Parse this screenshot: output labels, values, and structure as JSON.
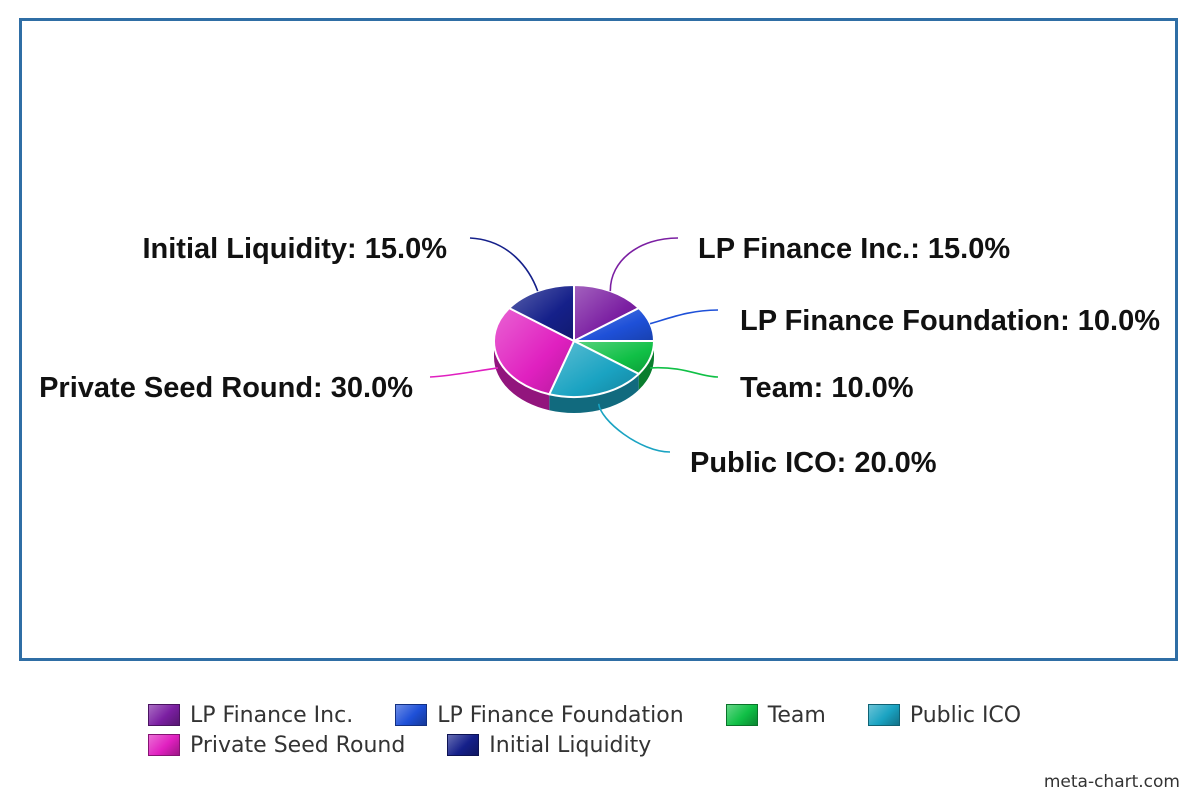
{
  "chart_data": {
    "type": "pie",
    "title": "",
    "style": "3d",
    "slices": [
      {
        "name": "LP Finance Inc.",
        "value": 15.0,
        "label": "LP Finance Inc.: 15.0%",
        "color": "#7b1fa2"
      },
      {
        "name": "LP Finance Foundation",
        "value": 10.0,
        "label": "LP Finance Foundation: 10.0%",
        "color": "#1e50d8"
      },
      {
        "name": "Team",
        "value": 10.0,
        "label": "Team: 10.0%",
        "color": "#10c046"
      },
      {
        "name": "Public ICO",
        "value": 20.0,
        "label": "Public ICO: 20.0%",
        "color": "#1aa3c2"
      },
      {
        "name": "Private Seed Round",
        "value": 30.0,
        "label": "Private Seed Round: 30.0%",
        "color": "#e020c0"
      },
      {
        "name": "Initial Liquidity",
        "value": 15.0,
        "label": "Initial Liquidity: 15.0%",
        "color": "#15208a"
      }
    ],
    "legend_position": "bottom"
  },
  "legend": {
    "rows": [
      [
        {
          "label": "LP Finance Inc.",
          "color": "#7b1fa2"
        },
        {
          "label": "LP Finance Foundation",
          "color": "#1e50d8"
        },
        {
          "label": "Team",
          "color": "#10c046"
        },
        {
          "label": "Public ICO",
          "color": "#1aa3c2"
        }
      ],
      [
        {
          "label": "Private Seed Round",
          "color": "#e020c0"
        },
        {
          "label": "Initial Liquidity",
          "color": "#15208a"
        }
      ]
    ]
  },
  "credit": "meta-chart.com"
}
